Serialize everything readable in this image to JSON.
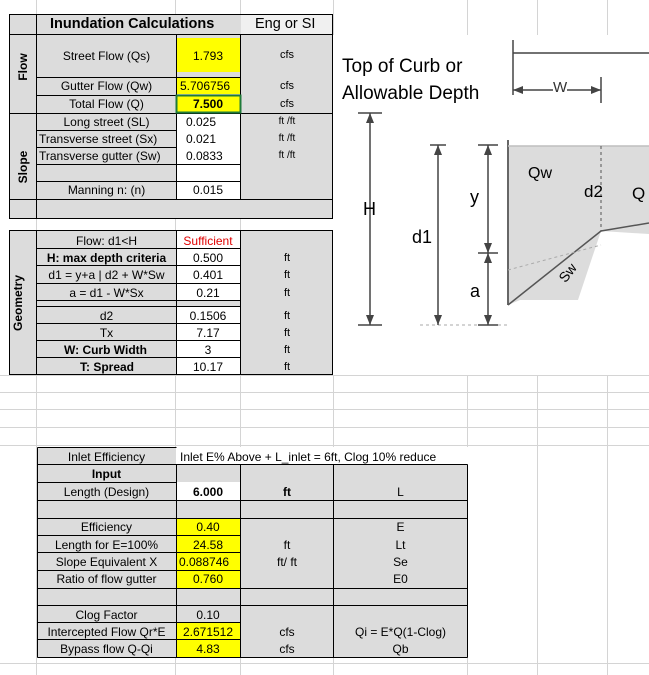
{
  "header": {
    "title": "Inundation Calculations",
    "units_toggle": "Eng or SI"
  },
  "section_labels": {
    "flow": "Flow",
    "slope": "Slope",
    "geometry": "Geometry"
  },
  "flow_rows": [
    {
      "label": "Street Flow (Qs)",
      "value": "1.793",
      "unit": "cfs"
    },
    {
      "label": "Gutter Flow (Qw)",
      "value": "5.706756",
      "unit": "cfs"
    },
    {
      "label": "Total Flow (Q)",
      "value": "7.500",
      "unit": "cfs"
    }
  ],
  "slope_rows": [
    {
      "label": "Long street (SL)",
      "value": "0.025",
      "unit": "ft /ft"
    },
    {
      "label": "Transverse street  (Sx)",
      "value": "0.021",
      "unit": "ft /ft"
    },
    {
      "label": "Transverse gutter  (Sw)",
      "value": "0.0833",
      "unit": "ft /ft"
    },
    {
      "label": "Manning n: (n)",
      "value": "0.015",
      "unit": ""
    }
  ],
  "geometry_rows": [
    {
      "label": "Flow: d1<H",
      "value": "Sufficient",
      "unit": ""
    },
    {
      "label": "H: max depth criteria",
      "value": "0.500",
      "unit": "ft"
    },
    {
      "label": "d1 = y+a | d2 + W*Sw",
      "value": "0.401",
      "unit": "ft"
    },
    {
      "label": "a = d1 - W*Sx",
      "value": "0.21",
      "unit": "ft"
    },
    {
      "label": "d2",
      "value": "0.1506",
      "unit": "ft"
    },
    {
      "label": "Tx",
      "value": "7.17",
      "unit": "ft"
    },
    {
      "label": "W: Curb Width",
      "value": "3",
      "unit": "ft"
    },
    {
      "label": "T: Spread",
      "value": "10.17",
      "unit": "ft"
    }
  ],
  "inlet": {
    "title": "Inlet Efficiency",
    "note": "Inlet E% Above + L_inlet = 6ft, Clog 10% reduce",
    "input_header": "Input",
    "length_label": "Length (Design)",
    "length_value": "6.000",
    "length_unit": "ft",
    "length_symbol": "L",
    "rows": [
      {
        "label": "Efficiency",
        "value": "0.40",
        "unit": "",
        "symbol": "E"
      },
      {
        "label": "Length for E=100%",
        "value": "24.58",
        "unit": "ft",
        "symbol": "Lt"
      },
      {
        "label": "Slope Equivalent X",
        "value": "0.088746",
        "unit": "ft/ ft",
        "symbol": "Se"
      },
      {
        "label": "Ratio of flow gutter",
        "value": "0.760",
        "unit": "",
        "symbol": "E0"
      }
    ],
    "clog_rows": [
      {
        "label": "Clog Factor",
        "value": "0.10",
        "unit": "",
        "symbol": ""
      },
      {
        "label": "Intercepted Flow Qr*E",
        "value": "2.671512",
        "unit": "cfs",
        "symbol": "Qi = E*Q(1-Clog)"
      },
      {
        "label": "Bypass flow Q-Qi",
        "value": "4.83",
        "unit": "cfs",
        "symbol": "Qb"
      }
    ]
  },
  "diagram": {
    "title_line1": "Top of Curb or",
    "title_line2": "Allowable Depth",
    "W": "W",
    "H": "H",
    "y": "y",
    "d1": "d1",
    "a": "a",
    "Qw": "Qw",
    "d2": "d2",
    "Q_edge": "Q",
    "Sw": "Sw"
  },
  "colors": {
    "highlight": "#ffff00",
    "panel": "#dcdcdc",
    "warning_text": "#e00000",
    "active_cell_border": "#1f7a3a"
  }
}
